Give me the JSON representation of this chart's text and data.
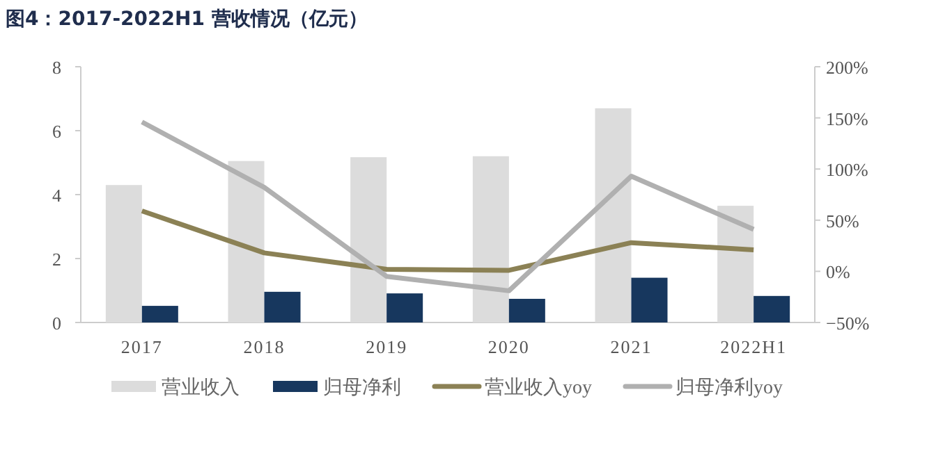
{
  "chart_data": {
    "type": "bar",
    "title": "图4：2017-2022H1 营收情况（亿元）",
    "categories": [
      "2017",
      "2018",
      "2019",
      "2020",
      "2021",
      "2022H1"
    ],
    "series": [
      {
        "name": "营业收入",
        "color": "#dcdcdc",
        "values": [
          4.3,
          5.05,
          5.17,
          5.2,
          6.7,
          3.65
        ]
      },
      {
        "name": "归母净利",
        "color": "#17375e",
        "values": [
          0.52,
          0.96,
          0.91,
          0.74,
          1.4,
          0.83
        ]
      },
      {
        "name": "营业收入yoy",
        "type": "line",
        "axis": "y2",
        "color": "#8b8155",
        "values": [
          59,
          18,
          2,
          1,
          28,
          21
        ]
      },
      {
        "name": "归母净利yoy",
        "type": "line",
        "axis": "y2",
        "color": "#b0b0b0",
        "values": [
          146,
          82,
          -5,
          -19,
          93,
          41
        ]
      }
    ],
    "ylim": [
      0,
      8
    ],
    "yticks": [
      0,
      2,
      4,
      6,
      8
    ],
    "y2lim": [
      -50,
      200
    ],
    "y2ticks": [
      {
        "value": -50,
        "label": "−50%"
      },
      {
        "value": 0,
        "label": "0%"
      },
      {
        "value": 50,
        "label": "50%"
      },
      {
        "value": 100,
        "label": "100%"
      },
      {
        "value": 150,
        "label": "150%"
      },
      {
        "value": 200,
        "label": "200%"
      }
    ],
    "grid": false,
    "legend": "bottom",
    "marker": "none",
    "line_style": "solid"
  }
}
